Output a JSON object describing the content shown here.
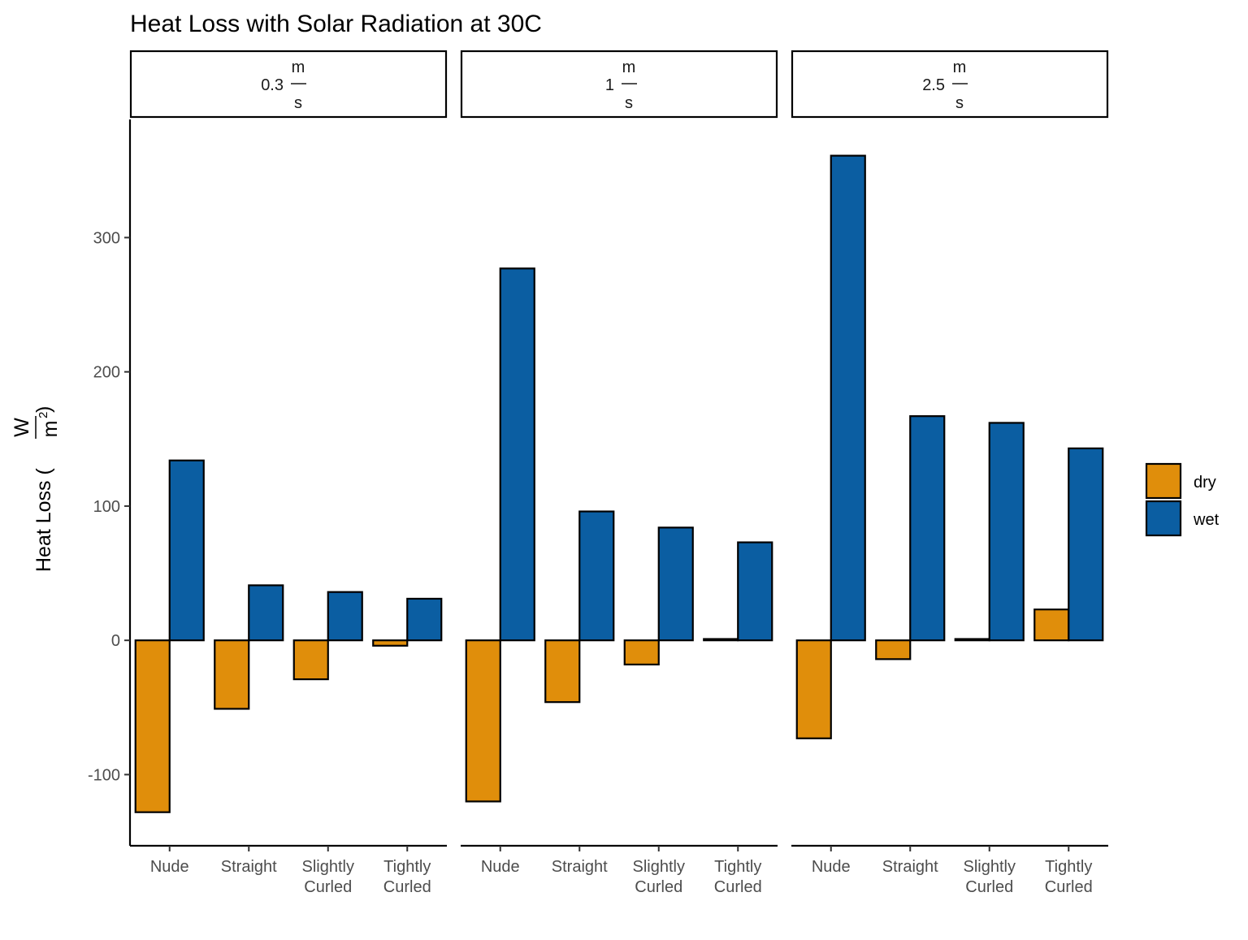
{
  "chart_data": {
    "type": "bar",
    "title": "Heat Loss with Solar Radiation at 30C",
    "ylabel": {
      "prefix": "Heat Loss (",
      "numerator": "W",
      "denominator": "m",
      "exponent": "2",
      "suffix": ")"
    },
    "xlabel": "",
    "ylim": [
      -153,
      388
    ],
    "yticks": [
      "300",
      "200",
      "100",
      "0",
      "-100"
    ],
    "categories": [
      {
        "line1": "Nude",
        "line2": ""
      },
      {
        "line1": "Straight",
        "line2": ""
      },
      {
        "line1": "Slightly",
        "line2": "Curled"
      },
      {
        "line1": "Tightly",
        "line2": "Curled"
      }
    ],
    "panels": [
      {
        "strip": {
          "value": "0.3",
          "numerator": "m",
          "denominator": "s"
        },
        "series": [
          {
            "name": "dry",
            "values": [
              -128,
              -51,
              -29,
              -4
            ]
          },
          {
            "name": "wet",
            "values": [
              134,
              41,
              36,
              31
            ]
          }
        ]
      },
      {
        "strip": {
          "value": "1",
          "numerator": "m",
          "denominator": "s"
        },
        "series": [
          {
            "name": "dry",
            "values": [
              -120,
              -46,
              -18,
              1
            ]
          },
          {
            "name": "wet",
            "values": [
              277,
              96,
              84,
              73
            ]
          }
        ]
      },
      {
        "strip": {
          "value": "2.5",
          "numerator": "m",
          "denominator": "s"
        },
        "series": [
          {
            "name": "dry",
            "values": [
              -73,
              -14,
              1,
              23
            ]
          },
          {
            "name": "wet",
            "values": [
              361,
              167,
              162,
              143
            ]
          }
        ]
      }
    ],
    "legend": {
      "placement": "right",
      "items": [
        {
          "label": "dry",
          "color": "#E08E0B"
        },
        {
          "label": "wet",
          "color": "#0B5EA2"
        }
      ]
    },
    "grid": false
  }
}
